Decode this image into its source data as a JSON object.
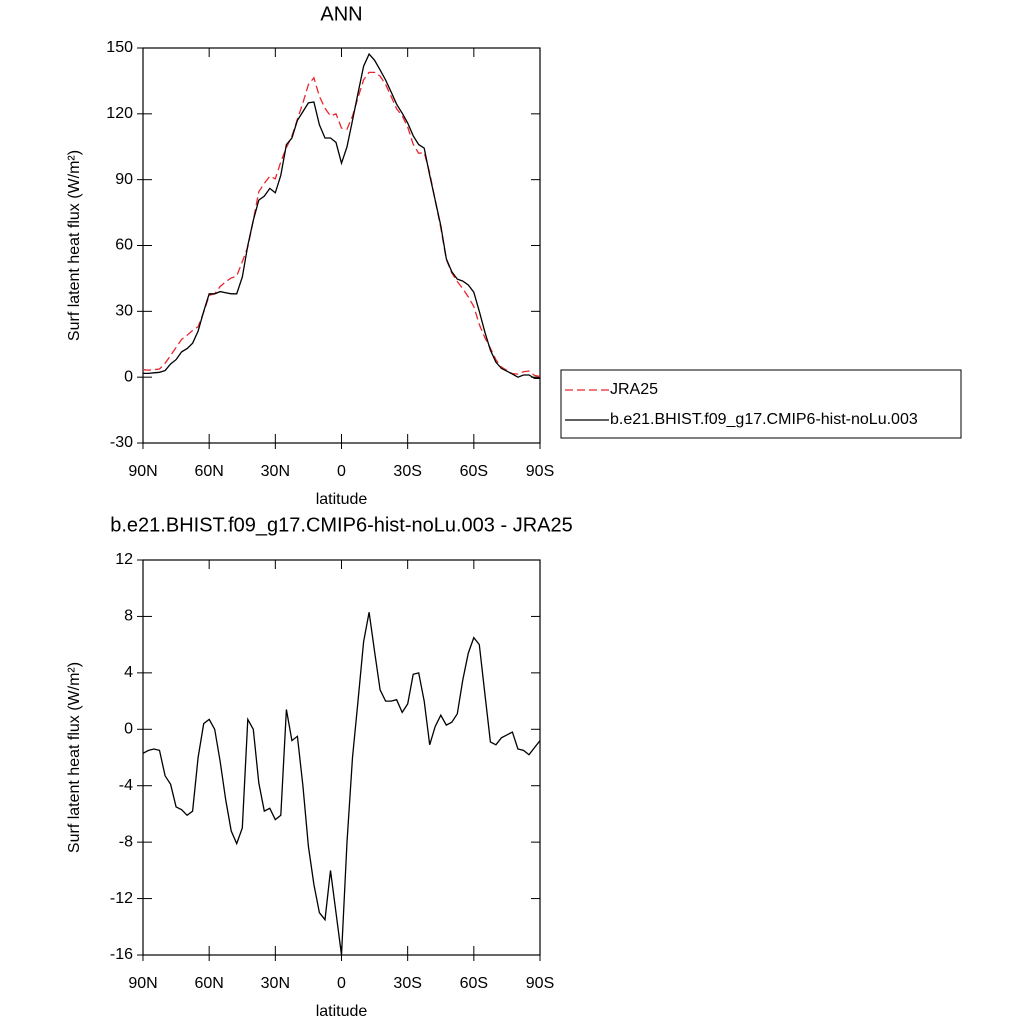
{
  "chart_data": [
    {
      "type": "line",
      "title": "ANN",
      "xlabel": "latitude",
      "ylabel": "Surf latent heat flux (W/m²)",
      "x": [
        90,
        87.5,
        85,
        82.5,
        80,
        77.5,
        75,
        72.5,
        70,
        67.5,
        65,
        62.5,
        60,
        57.5,
        55,
        52.5,
        50,
        47.5,
        45,
        42.5,
        40,
        37.5,
        35,
        32.5,
        30,
        27.5,
        25,
        22.5,
        20,
        17.5,
        15,
        12.5,
        10,
        7.5,
        5,
        2.5,
        0,
        -2.5,
        -5,
        -7.5,
        -10,
        -12.5,
        -15,
        -17.5,
        -20,
        -22.5,
        -25,
        -27.5,
        -30,
        -32.5,
        -35,
        -37.5,
        -40,
        -42.5,
        -45,
        -47.5,
        -50,
        -52.5,
        -55,
        -57.5,
        -60,
        -62.5,
        -65,
        -67.5,
        -70,
        -72.5,
        -75,
        -77.5,
        -80,
        -82.5,
        -85,
        -87.5,
        -90
      ],
      "series": [
        {
          "name": "JRA25",
          "color": "#e8262d",
          "dashed": true,
          "values": [
            3.4,
            3.2,
            3.4,
            3.7,
            6.3,
            9.9,
            13.5,
            17.2,
            19.1,
            21.3,
            23,
            29.6,
            37.3,
            38,
            41.3,
            43.5,
            45.2,
            46.1,
            52.6,
            59.3,
            71.5,
            84.5,
            88.3,
            91.6,
            90.4,
            98.1,
            104.6,
            109.8,
            117.5,
            125,
            133.3,
            136.4,
            128,
            122.5,
            119,
            120,
            113.5,
            113,
            119,
            127.4,
            135.5,
            138.9,
            138.9,
            137.2,
            133.4,
            128,
            122.3,
            119.1,
            114,
            106.1,
            102,
            102.4,
            93.1,
            80.5,
            68,
            53.7,
            47.5,
            43.6,
            40.3,
            36.6,
            32.2,
            24,
            18,
            13.2,
            7.9,
            4.6,
            3.1,
            1.6,
            1.4,
            2.5,
            2.8,
            0.8,
            0.3
          ]
        },
        {
          "name": "b.e21.BHIST.f09_g17.CMIP6-hist-noLu.003",
          "color": "#000000",
          "dashed": false,
          "values": [
            1.7,
            1.7,
            2,
            2.2,
            3,
            6,
            8,
            11.5,
            13,
            15.5,
            21,
            30,
            38,
            38,
            39,
            38.5,
            38,
            38,
            45.6,
            60,
            71.5,
            80.7,
            82.5,
            86,
            84,
            92,
            106,
            109,
            117,
            121,
            125,
            125.4,
            115,
            109,
            109,
            107,
            97.5,
            105,
            117,
            129.4,
            141.7,
            147.2,
            144.4,
            140,
            135.4,
            130,
            124.4,
            120.3,
            115.8,
            110,
            106,
            104.4,
            92,
            80.7,
            69,
            54,
            48,
            44.7,
            43.8,
            42,
            38.7,
            30,
            20.5,
            12.3,
            6.8,
            4,
            2.7,
            1.4,
            0,
            1,
            1,
            -0.5,
            -0.5
          ]
        }
      ],
      "xlim": [
        90,
        -90
      ],
      "xticks": [
        {
          "value": 90,
          "label": "90N"
        },
        {
          "value": 60,
          "label": "60N"
        },
        {
          "value": 30,
          "label": "30N"
        },
        0,
        {
          "value": -30,
          "label": "30S"
        },
        {
          "value": -60,
          "label": "60S"
        },
        {
          "value": -90,
          "label": "90S"
        }
      ],
      "ylim": [
        -30,
        150
      ],
      "yticks": [
        -30,
        0,
        30,
        60,
        90,
        120,
        150
      ],
      "legend": "right"
    },
    {
      "type": "line",
      "title": "b.e21.BHIST.f09_g17.CMIP6-hist-noLu.003 - JRA25",
      "xlabel": "latitude",
      "ylabel": "Surf latent heat flux (W/m²)",
      "x": [
        90,
        87.5,
        85,
        82.5,
        80,
        77.5,
        75,
        72.5,
        70,
        67.5,
        65,
        62.5,
        60,
        57.5,
        55,
        52.5,
        50,
        47.5,
        45,
        42.5,
        40,
        37.5,
        35,
        32.5,
        30,
        27.5,
        25,
        22.5,
        20,
        17.5,
        15,
        12.5,
        10,
        7.5,
        5,
        2.5,
        0,
        -2.5,
        -5,
        -7.5,
        -10,
        -12.5,
        -15,
        -17.5,
        -20,
        -22.5,
        -25,
        -27.5,
        -30,
        -32.5,
        -35,
        -37.5,
        -40,
        -42.5,
        -45,
        -47.5,
        -50,
        -52.5,
        -55,
        -57.5,
        -60,
        -62.5,
        -65,
        -67.5,
        -70,
        -72.5,
        -75,
        -77.5,
        -80,
        -82.5,
        -85,
        -87.5,
        -90
      ],
      "color": "#000000",
      "values": [
        -1.7,
        -1.5,
        -1.4,
        -1.5,
        -3.3,
        -3.9,
        -5.5,
        -5.7,
        -6.1,
        -5.8,
        -2,
        0.4,
        0.7,
        0,
        -2.3,
        -5,
        -7.2,
        -8.1,
        -7,
        0.7,
        0,
        -3.8,
        -5.8,
        -5.6,
        -6.4,
        -6.1,
        1.4,
        -0.8,
        -0.5,
        -4,
        -8.3,
        -11,
        -13,
        -13.5,
        -10,
        -13,
        -16,
        -8,
        -2,
        2,
        6.2,
        8.3,
        5.5,
        2.8,
        2,
        2,
        2.1,
        1.2,
        1.8,
        3.9,
        4,
        2,
        -1.1,
        0.2,
        1,
        0.3,
        0.5,
        1.1,
        3.5,
        5.4,
        6.5,
        6,
        2.5,
        -0.9,
        -1.1,
        -0.6,
        -0.4,
        -0.2,
        -1.4,
        -1.5,
        -1.8,
        -1.3,
        -0.8
      ],
      "xlim": [
        90,
        -90
      ],
      "xticks": [
        {
          "value": 90,
          "label": "90N"
        },
        {
          "value": 60,
          "label": "60N"
        },
        {
          "value": 30,
          "label": "30N"
        },
        0,
        {
          "value": -30,
          "label": "30S"
        },
        {
          "value": -60,
          "label": "60S"
        },
        {
          "value": -90,
          "label": "90S"
        }
      ],
      "ylim": [
        -16,
        12
      ],
      "yticks": [
        -16,
        -12,
        -8,
        -4,
        0,
        4,
        8,
        12
      ]
    }
  ]
}
